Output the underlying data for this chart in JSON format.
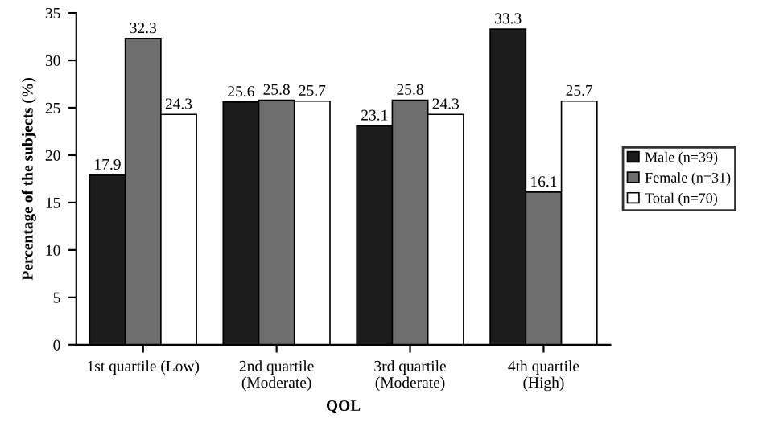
{
  "chart_data": {
    "type": "bar",
    "xlabel": "QOL",
    "ylabel": "Percentage of the subjects (%)",
    "categories": [
      "1st quartile (Low)",
      "2nd quartile\n(Moderate)",
      "3rd quartile\n(Moderate)",
      "4th quartile\n(High)"
    ],
    "series": [
      {
        "name": "Male (n=39)",
        "color": "#1c1c1c",
        "values": [
          17.9,
          25.6,
          23.1,
          33.3
        ]
      },
      {
        "name": "Female (n=31)",
        "color": "#6e6e6e",
        "values": [
          32.3,
          25.8,
          25.8,
          16.1
        ]
      },
      {
        "name": "Total (n=70)",
        "color": "#ffffff",
        "values": [
          24.3,
          25.7,
          24.3,
          25.7
        ]
      }
    ],
    "ylim": [
      0,
      35
    ],
    "yticks": [
      0,
      5,
      10,
      15,
      20,
      25,
      30,
      35
    ],
    "data_labels": true,
    "legend": "right",
    "grid": false
  }
}
